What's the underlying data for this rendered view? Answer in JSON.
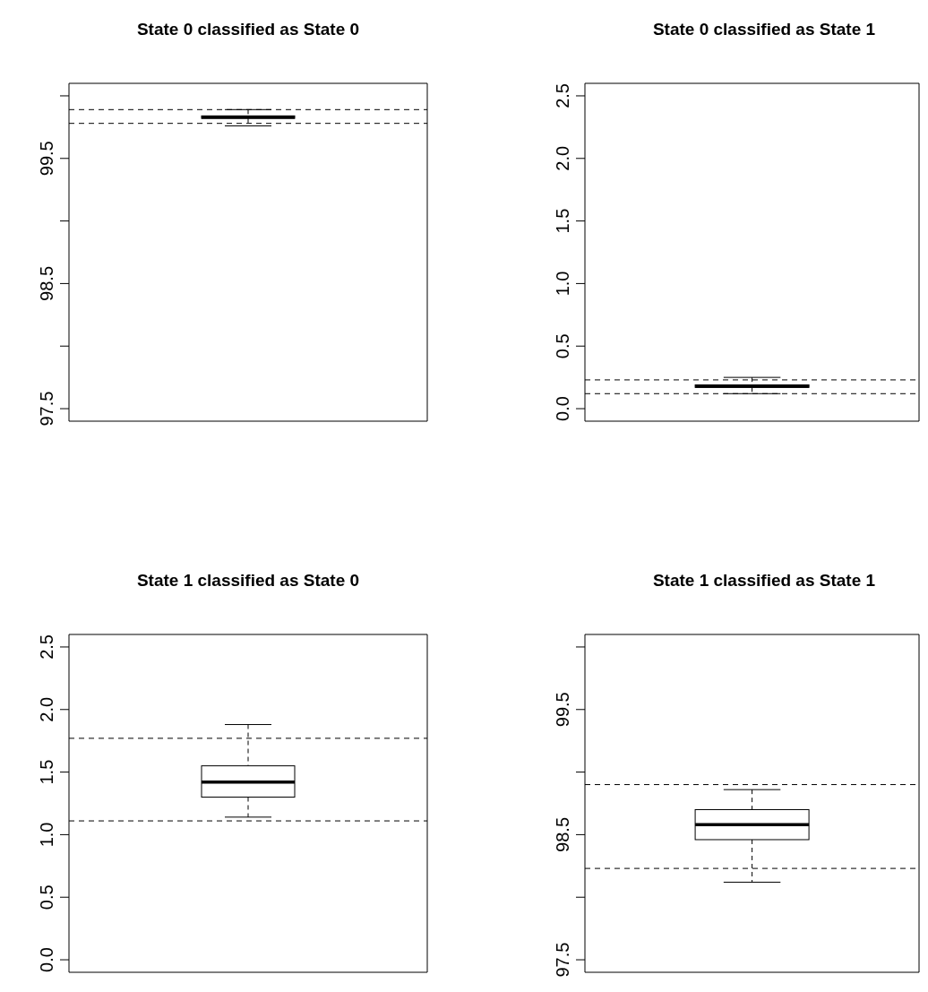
{
  "chart_data": [
    {
      "type": "box",
      "title": "State 0 classified as State 0",
      "categories": [
        null
      ],
      "boxes": [
        {
          "low": 99.76,
          "q1": 99.82,
          "median": 99.83,
          "q3": 99.84,
          "high": 99.89
        }
      ],
      "ylim": [
        97.4,
        100.1
      ],
      "yticks": [
        97.5,
        {
          "value": 98,
          "label": null
        },
        98.5,
        {
          "value": 99,
          "label": null
        },
        99.5,
        {
          "value": 100,
          "label": null
        }
      ],
      "ref_lines": [
        {
          "axis": "y",
          "value": 99.89,
          "line_style": "dashed"
        },
        {
          "axis": "y",
          "value": 99.78,
          "line_style": "dashed"
        }
      ]
    },
    {
      "type": "box",
      "title": "State 0 classified as State 1",
      "categories": [
        null
      ],
      "boxes": [
        {
          "low": 0.12,
          "q1": 0.17,
          "median": 0.18,
          "q3": 0.19,
          "high": 0.25
        }
      ],
      "ylim": [
        -0.1,
        2.6
      ],
      "yticks": [
        {
          "value": 0,
          "label": "0.0"
        },
        0.5,
        {
          "value": 1,
          "label": "1.0"
        },
        1.5,
        {
          "value": 2,
          "label": "2.0"
        },
        2.5
      ],
      "ref_lines": [
        {
          "axis": "y",
          "value": 0.23,
          "line_style": "dashed"
        },
        {
          "axis": "y",
          "value": 0.12,
          "line_style": "dashed"
        }
      ]
    },
    {
      "type": "box",
      "title": "State 1 classified as State 0",
      "categories": [
        null
      ],
      "boxes": [
        {
          "low": 1.14,
          "q1": 1.3,
          "median": 1.42,
          "q3": 1.55,
          "high": 1.88
        }
      ],
      "ylim": [
        -0.1,
        2.6
      ],
      "yticks": [
        {
          "value": 0,
          "label": "0.0"
        },
        0.5,
        {
          "value": 1,
          "label": "1.0"
        },
        1.5,
        {
          "value": 2,
          "label": "2.0"
        },
        2.5
      ],
      "ref_lines": [
        {
          "axis": "y",
          "value": 1.77,
          "line_style": "dashed"
        },
        {
          "axis": "y",
          "value": 1.11,
          "line_style": "dashed"
        }
      ]
    },
    {
      "type": "box",
      "title": "State 1 classified as State 1",
      "categories": [
        null
      ],
      "boxes": [
        {
          "low": 98.12,
          "q1": 98.46,
          "median": 98.58,
          "q3": 98.7,
          "high": 98.86
        }
      ],
      "ylim": [
        97.4,
        100.1
      ],
      "yticks": [
        97.5,
        {
          "value": 98,
          "label": null
        },
        98.5,
        {
          "value": 99,
          "label": null
        },
        99.5,
        {
          "value": 100,
          "label": null
        }
      ],
      "ref_lines": [
        {
          "axis": "y",
          "value": 98.9,
          "line_style": "dashed"
        },
        {
          "axis": "y",
          "value": 98.23,
          "line_style": "dashed"
        }
      ]
    }
  ]
}
